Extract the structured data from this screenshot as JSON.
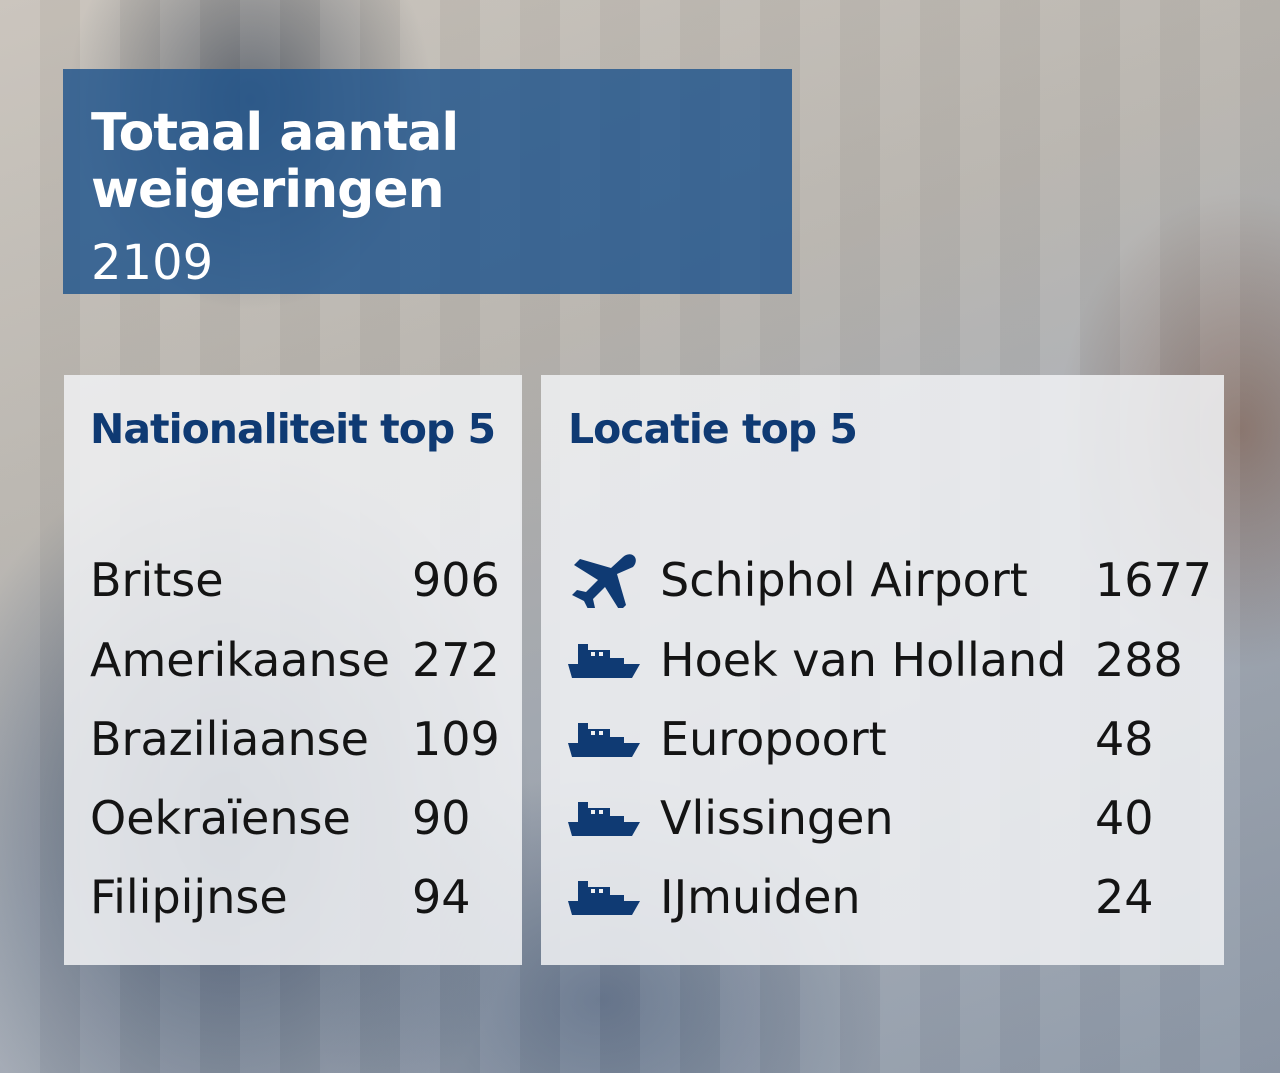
{
  "header": {
    "title": "Totaal aantal weigeringen",
    "total": "2109"
  },
  "colors": {
    "title_bg": "#20548c",
    "heading_text": "#0f3a73",
    "icon": "#0f3a73"
  },
  "nationality": {
    "heading": "Nationaliteit top 5",
    "items": [
      {
        "label": "Britse",
        "value": "906"
      },
      {
        "label": "Amerikaanse",
        "value": "272"
      },
      {
        "label": "Braziliaanse",
        "value": "109"
      },
      {
        "label": "Oekraïense",
        "value": "90"
      },
      {
        "label": "Filipijnse",
        "value": "94"
      }
    ]
  },
  "location": {
    "heading": "Locatie top 5",
    "items": [
      {
        "icon": "airplane-icon",
        "label": "Schiphol Airport",
        "value": "1677"
      },
      {
        "icon": "ship-icon",
        "label": "Hoek van Holland",
        "value": "288"
      },
      {
        "icon": "ship-icon",
        "label": "Europoort",
        "value": "48"
      },
      {
        "icon": "ship-icon",
        "label": "Vlissingen",
        "value": "40"
      },
      {
        "icon": "ship-icon",
        "label": "IJmuiden",
        "value": "24"
      }
    ]
  }
}
